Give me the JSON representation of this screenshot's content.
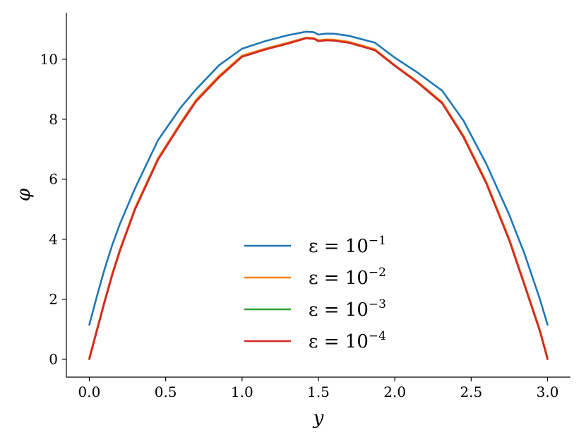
{
  "chart_data": {
    "type": "line",
    "title": "",
    "xlabel": "y",
    "ylabel": "φ",
    "xlim": [
      -0.15,
      3.15
    ],
    "ylim": [
      -0.6,
      11.55
    ],
    "xticks": [
      0.0,
      0.5,
      1.0,
      1.5,
      2.0,
      2.5,
      3.0
    ],
    "xtick_labels": [
      "0.0",
      "0.5",
      "1.0",
      "1.5",
      "2.0",
      "2.5",
      "3.0"
    ],
    "yticks": [
      0,
      2,
      4,
      6,
      8,
      10
    ],
    "ytick_labels": [
      "0",
      "2",
      "4",
      "6",
      "8",
      "10"
    ],
    "grid": false,
    "legend_position": "lower-center",
    "series": [
      {
        "name": "ε = 10−1",
        "legend_base": "ε = 10",
        "legend_exp": "−1",
        "color": "#1f77b4",
        "x": [
          0.0,
          0.05,
          0.1,
          0.15,
          0.2,
          0.3,
          0.45,
          0.6,
          0.7,
          0.85,
          1.0,
          1.15,
          1.3,
          1.42,
          1.47,
          1.5,
          1.55,
          1.6,
          1.7,
          1.87,
          2.0,
          2.15,
          2.31,
          2.45,
          2.6,
          2.75,
          2.85,
          2.95,
          3.0
        ],
        "y": [
          1.15,
          2.1,
          3.0,
          3.8,
          4.5,
          5.7,
          7.3,
          8.4,
          9.0,
          9.8,
          10.35,
          10.6,
          10.8,
          10.92,
          10.9,
          10.82,
          10.85,
          10.85,
          10.78,
          10.55,
          10.05,
          9.55,
          8.95,
          7.95,
          6.5,
          4.8,
          3.5,
          2.0,
          1.15
        ]
      },
      {
        "name": "ε = 10−2",
        "legend_base": "ε = 10",
        "legend_exp": "−2",
        "color": "#ff7f0e",
        "x": [
          0.0,
          0.05,
          0.1,
          0.15,
          0.2,
          0.3,
          0.45,
          0.6,
          0.7,
          0.85,
          1.0,
          1.15,
          1.3,
          1.42,
          1.47,
          1.5,
          1.55,
          1.6,
          1.7,
          1.87,
          2.0,
          2.15,
          2.31,
          2.45,
          2.6,
          2.75,
          2.85,
          2.95,
          3.0
        ],
        "y": [
          0.05,
          1.0,
          1.95,
          2.85,
          3.65,
          5.05,
          6.7,
          7.9,
          8.65,
          9.45,
          10.12,
          10.35,
          10.55,
          10.72,
          10.7,
          10.63,
          10.66,
          10.65,
          10.58,
          10.33,
          9.8,
          9.25,
          8.57,
          7.45,
          5.9,
          4.0,
          2.5,
          0.98,
          0.05
        ]
      },
      {
        "name": "ε = 10−3",
        "legend_base": "ε = 10",
        "legend_exp": "−3",
        "color": "#2ca02c",
        "x": [
          0.0,
          0.05,
          0.1,
          0.15,
          0.2,
          0.3,
          0.45,
          0.6,
          0.7,
          0.85,
          1.0,
          1.15,
          1.3,
          1.42,
          1.47,
          1.5,
          1.55,
          1.6,
          1.7,
          1.87,
          2.0,
          2.15,
          2.31,
          2.45,
          2.6,
          2.75,
          2.85,
          2.95,
          3.0
        ],
        "y": [
          0.0,
          0.95,
          1.9,
          2.8,
          3.6,
          5.0,
          6.65,
          7.85,
          8.6,
          9.4,
          10.08,
          10.32,
          10.52,
          10.7,
          10.68,
          10.6,
          10.63,
          10.62,
          10.55,
          10.3,
          9.78,
          9.22,
          8.53,
          7.4,
          5.85,
          3.95,
          2.45,
          0.93,
          0.0
        ]
      },
      {
        "name": "ε = 10−4",
        "legend_base": "ε = 10",
        "legend_exp": "−4",
        "color": "#d62728",
        "x": [
          0.0,
          0.05,
          0.1,
          0.15,
          0.2,
          0.3,
          0.45,
          0.6,
          0.7,
          0.85,
          1.0,
          1.15,
          1.3,
          1.42,
          1.47,
          1.5,
          1.55,
          1.6,
          1.7,
          1.87,
          2.0,
          2.15,
          2.31,
          2.45,
          2.6,
          2.75,
          2.85,
          2.95,
          3.0
        ],
        "y": [
          0.0,
          0.95,
          1.9,
          2.8,
          3.6,
          5.0,
          6.65,
          7.85,
          8.6,
          9.4,
          10.08,
          10.32,
          10.52,
          10.7,
          10.68,
          10.6,
          10.63,
          10.62,
          10.55,
          10.3,
          9.78,
          9.22,
          8.53,
          7.4,
          5.85,
          3.95,
          2.45,
          0.93,
          0.0
        ]
      }
    ]
  }
}
